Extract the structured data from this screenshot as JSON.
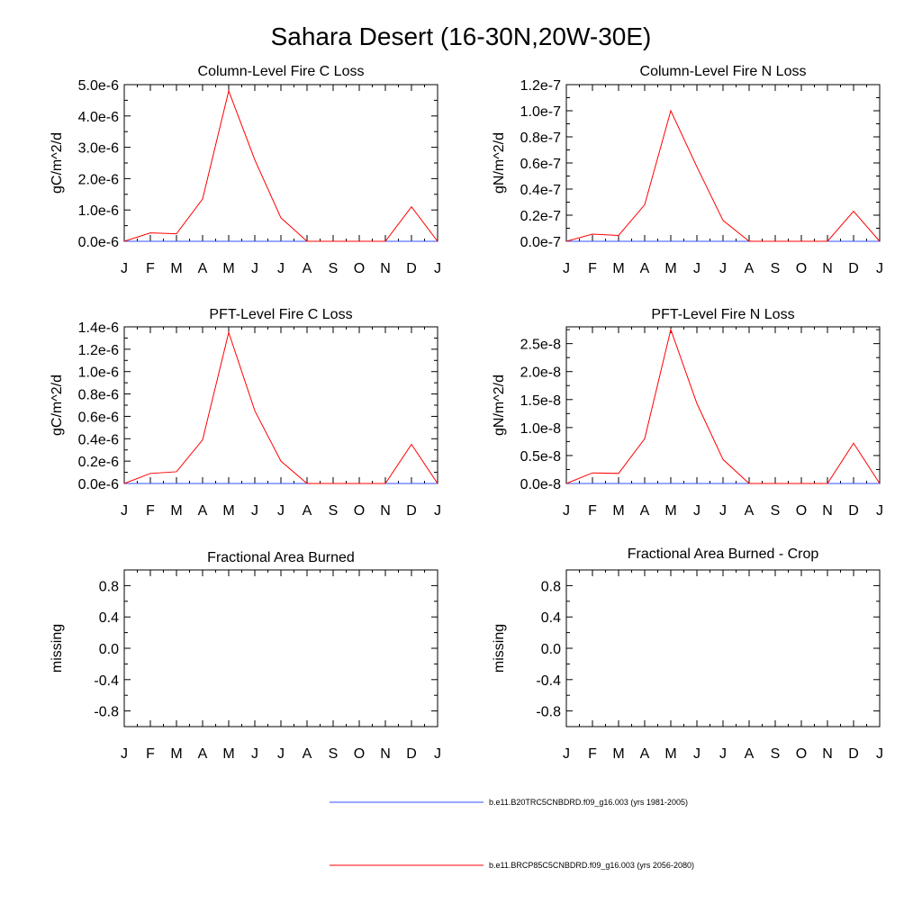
{
  "figure": {
    "title": "Sahara Desert (16-30N,20W-30E)"
  },
  "colors": {
    "series_1": "#3050ff",
    "series_2": "#ff0000",
    "frame": "#000000"
  },
  "legend": [
    {
      "name": "b.e11.B20TRC5CNBDRD.f09_g16.003 (yrs 1981-2005)",
      "color": "#3050ff"
    },
    {
      "name": "b.e11.BRCP85C5CNBDRD.f09_g16.003 (yrs 2056-2080)",
      "color": "#ff0000"
    }
  ],
  "chart_data": [
    {
      "type": "line",
      "title": "Column-Level Fire C Loss",
      "ylabel": "gC/m^2/d",
      "xlabel": "",
      "categories": [
        "J",
        "F",
        "M",
        "A",
        "M",
        "J",
        "J",
        "A",
        "S",
        "O",
        "N",
        "D",
        "J"
      ],
      "ylim": [
        0,
        5e-06
      ],
      "yticks": [
        0,
        1e-06,
        2e-06,
        3e-06,
        4e-06,
        5e-06
      ],
      "ytick_labels": [
        "0.0e-6",
        "1.0e-6",
        "2.0e-6",
        "3.0e-6",
        "4.0e-6",
        "5.0e-6"
      ],
      "series": [
        {
          "name": "b.e11.B20TRC5CNBDRD.f09_g16.003 (yrs 1981-2005)",
          "color": "#3050ff",
          "values": [
            0,
            0,
            0,
            0,
            0,
            0,
            0,
            0,
            0,
            0,
            0,
            0,
            0
          ]
        },
        {
          "name": "b.e11.BRCP85C5CNBDRD.f09_g16.003 (yrs 2056-2080)",
          "color": "#ff0000",
          "values": [
            0,
            2.7e-07,
            2.4e-07,
            1.35e-06,
            4.8e-06,
            2.6e-06,
            7.5e-07,
            0,
            0,
            0,
            0,
            1.1e-06,
            0
          ]
        }
      ]
    },
    {
      "type": "line",
      "title": "Column-Level Fire N Loss",
      "ylabel": "gN/m^2/d",
      "xlabel": "",
      "categories": [
        "J",
        "F",
        "M",
        "A",
        "M",
        "J",
        "J",
        "A",
        "S",
        "O",
        "N",
        "D",
        "J"
      ],
      "ylim": [
        0,
        1.2e-07
      ],
      "yticks": [
        0,
        2e-08,
        4e-08,
        6e-08,
        8e-08,
        1e-07,
        1.2e-07
      ],
      "ytick_labels": [
        "0.0e-7",
        "0.2e-7",
        "0.4e-7",
        "0.6e-7",
        "0.8e-7",
        "1.0e-7",
        "1.2e-7"
      ],
      "series": [
        {
          "name": "b.e11.B20TRC5CNBDRD.f09_g16.003 (yrs 1981-2005)",
          "color": "#3050ff",
          "values": [
            0,
            0,
            0,
            0,
            0,
            0,
            0,
            0,
            0,
            0,
            0,
            0,
            0
          ]
        },
        {
          "name": "b.e11.BRCP85C5CNBDRD.f09_g16.003 (yrs 2056-2080)",
          "color": "#ff0000",
          "values": [
            0,
            5.5e-09,
            4.5e-09,
            2.8e-08,
            1e-07,
            5.7e-08,
            1.6e-08,
            0,
            0,
            0,
            0,
            2.3e-08,
            0
          ]
        }
      ]
    },
    {
      "type": "line",
      "title": "PFT-Level Fire C Loss",
      "ylabel": "gC/m^2/d",
      "xlabel": "",
      "categories": [
        "J",
        "F",
        "M",
        "A",
        "M",
        "J",
        "J",
        "A",
        "S",
        "O",
        "N",
        "D",
        "J"
      ],
      "ylim": [
        0,
        1.4e-06
      ],
      "yticks": [
        0,
        2e-07,
        4e-07,
        6e-07,
        8e-07,
        1e-06,
        1.2e-06,
        1.4e-06
      ],
      "ytick_labels": [
        "0.0e-6",
        "0.2e-6",
        "0.4e-6",
        "0.6e-6",
        "0.8e-6",
        "1.0e-6",
        "1.2e-6",
        "1.4e-6"
      ],
      "series": [
        {
          "name": "b.e11.B20TRC5CNBDRD.f09_g16.003 (yrs 1981-2005)",
          "color": "#3050ff",
          "values": [
            0,
            0,
            0,
            0,
            0,
            0,
            0,
            0,
            0,
            0,
            0,
            0,
            0
          ]
        },
        {
          "name": "b.e11.BRCP85C5CNBDRD.f09_g16.003 (yrs 2056-2080)",
          "color": "#ff0000",
          "values": [
            0,
            9e-08,
            1.05e-07,
            3.9e-07,
            1.35e-06,
            6.5e-07,
            2e-07,
            0,
            0,
            0,
            0,
            3.5e-07,
            0
          ]
        }
      ]
    },
    {
      "type": "line",
      "title": "PFT-Level Fire N Loss",
      "ylabel": "gN/m^2/d",
      "xlabel": "",
      "categories": [
        "J",
        "F",
        "M",
        "A",
        "M",
        "J",
        "J",
        "A",
        "S",
        "O",
        "N",
        "D",
        "J"
      ],
      "ylim": [
        0,
        2.8e-08
      ],
      "yticks": [
        0,
        5e-09,
        1e-08,
        1.5e-08,
        2e-08,
        2.5e-08
      ],
      "ytick_labels": [
        "0.0e-8",
        "0.5e-8",
        "1.0e-8",
        "1.5e-8",
        "2.0e-8",
        "2.5e-8"
      ],
      "series": [
        {
          "name": "b.e11.B20TRC5CNBDRD.f09_g16.003 (yrs 1981-2005)",
          "color": "#3050ff",
          "values": [
            0,
            0,
            0,
            0,
            0,
            0,
            0,
            0,
            0,
            0,
            0,
            0,
            0
          ]
        },
        {
          "name": "b.e11.BRCP85C5CNBDRD.f09_g16.003 (yrs 2056-2080)",
          "color": "#ff0000",
          "values": [
            0,
            1.9e-09,
            1.8e-09,
            8e-09,
            2.75e-08,
            1.43e-08,
            4.3e-09,
            0,
            0,
            0,
            0,
            7.2e-09,
            0
          ]
        }
      ]
    },
    {
      "type": "line",
      "title": "Fractional Area Burned",
      "ylabel": "missing",
      "xlabel": "",
      "categories": [
        "J",
        "F",
        "M",
        "A",
        "M",
        "J",
        "J",
        "A",
        "S",
        "O",
        "N",
        "D",
        "J"
      ],
      "ylim": [
        -1.0,
        1.0
      ],
      "yticks": [
        -0.8,
        -0.4,
        0.0,
        0.4,
        0.8
      ],
      "ytick_labels": [
        "-0.8",
        "-0.4",
        "0.0",
        "0.4",
        "0.8"
      ],
      "series": []
    },
    {
      "type": "line",
      "title": "Fractional Area Burned - Crop",
      "ylabel": "missing",
      "xlabel": "",
      "categories": [
        "J",
        "F",
        "M",
        "A",
        "M",
        "J",
        "J",
        "A",
        "S",
        "O",
        "N",
        "D",
        "J"
      ],
      "ylim": [
        -1.0,
        1.0
      ],
      "yticks": [
        -0.8,
        -0.4,
        0.0,
        0.4,
        0.8
      ],
      "ytick_labels": [
        "-0.8",
        "-0.4",
        "0.0",
        "0.4",
        "0.8"
      ],
      "series": []
    }
  ]
}
